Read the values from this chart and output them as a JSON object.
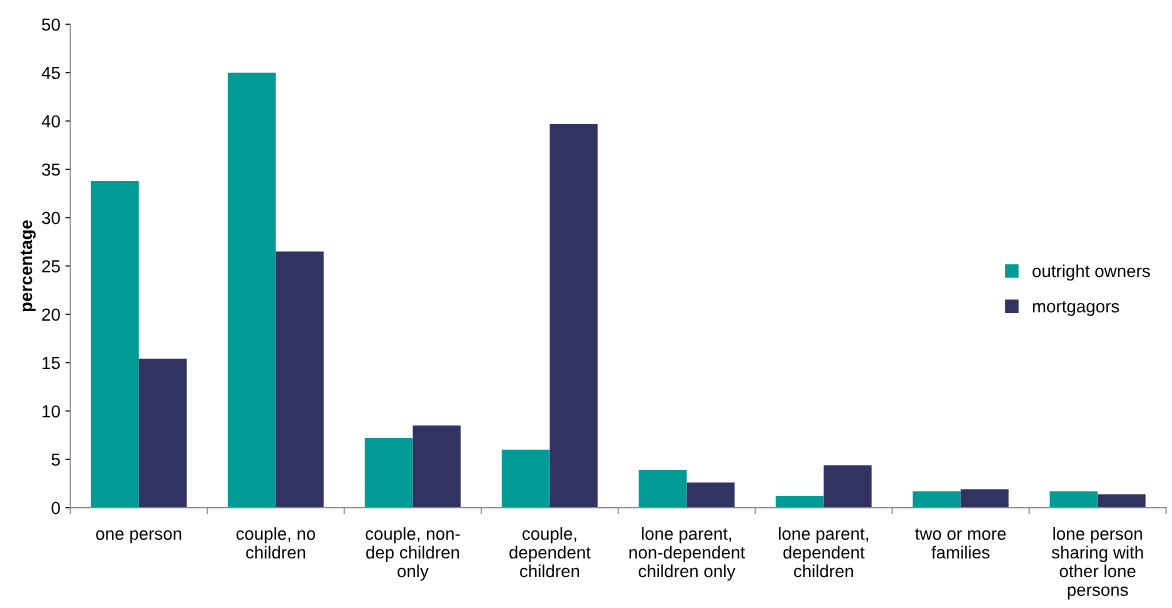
{
  "chart_data": {
    "type": "bar",
    "ylabel": "percentage",
    "categories": [
      "one person",
      "couple, no\nchildren",
      "couple, non-\ndep children\nonly",
      "couple,\ndependent\nchildren",
      "lone parent,\nnon-dependent\nchildren only",
      "lone parent,\ndependent\nchildren",
      "two or more\nfamilies",
      "lone person\nsharing with\nother lone\npersons"
    ],
    "series": [
      {
        "name": "outright owners",
        "color": "#009b95",
        "values": [
          33.8,
          45.0,
          7.2,
          6.0,
          3.9,
          1.2,
          1.7,
          1.7
        ]
      },
      {
        "name": "mortgagors",
        "color": "#333362",
        "values": [
          15.4,
          26.5,
          8.5,
          39.7,
          2.6,
          4.4,
          1.9,
          1.4
        ]
      }
    ],
    "ylim": [
      0,
      50
    ],
    "yticks": [
      0,
      5,
      10,
      15,
      20,
      25,
      30,
      35,
      40,
      45,
      50
    ],
    "grid": false,
    "legend": "right"
  }
}
